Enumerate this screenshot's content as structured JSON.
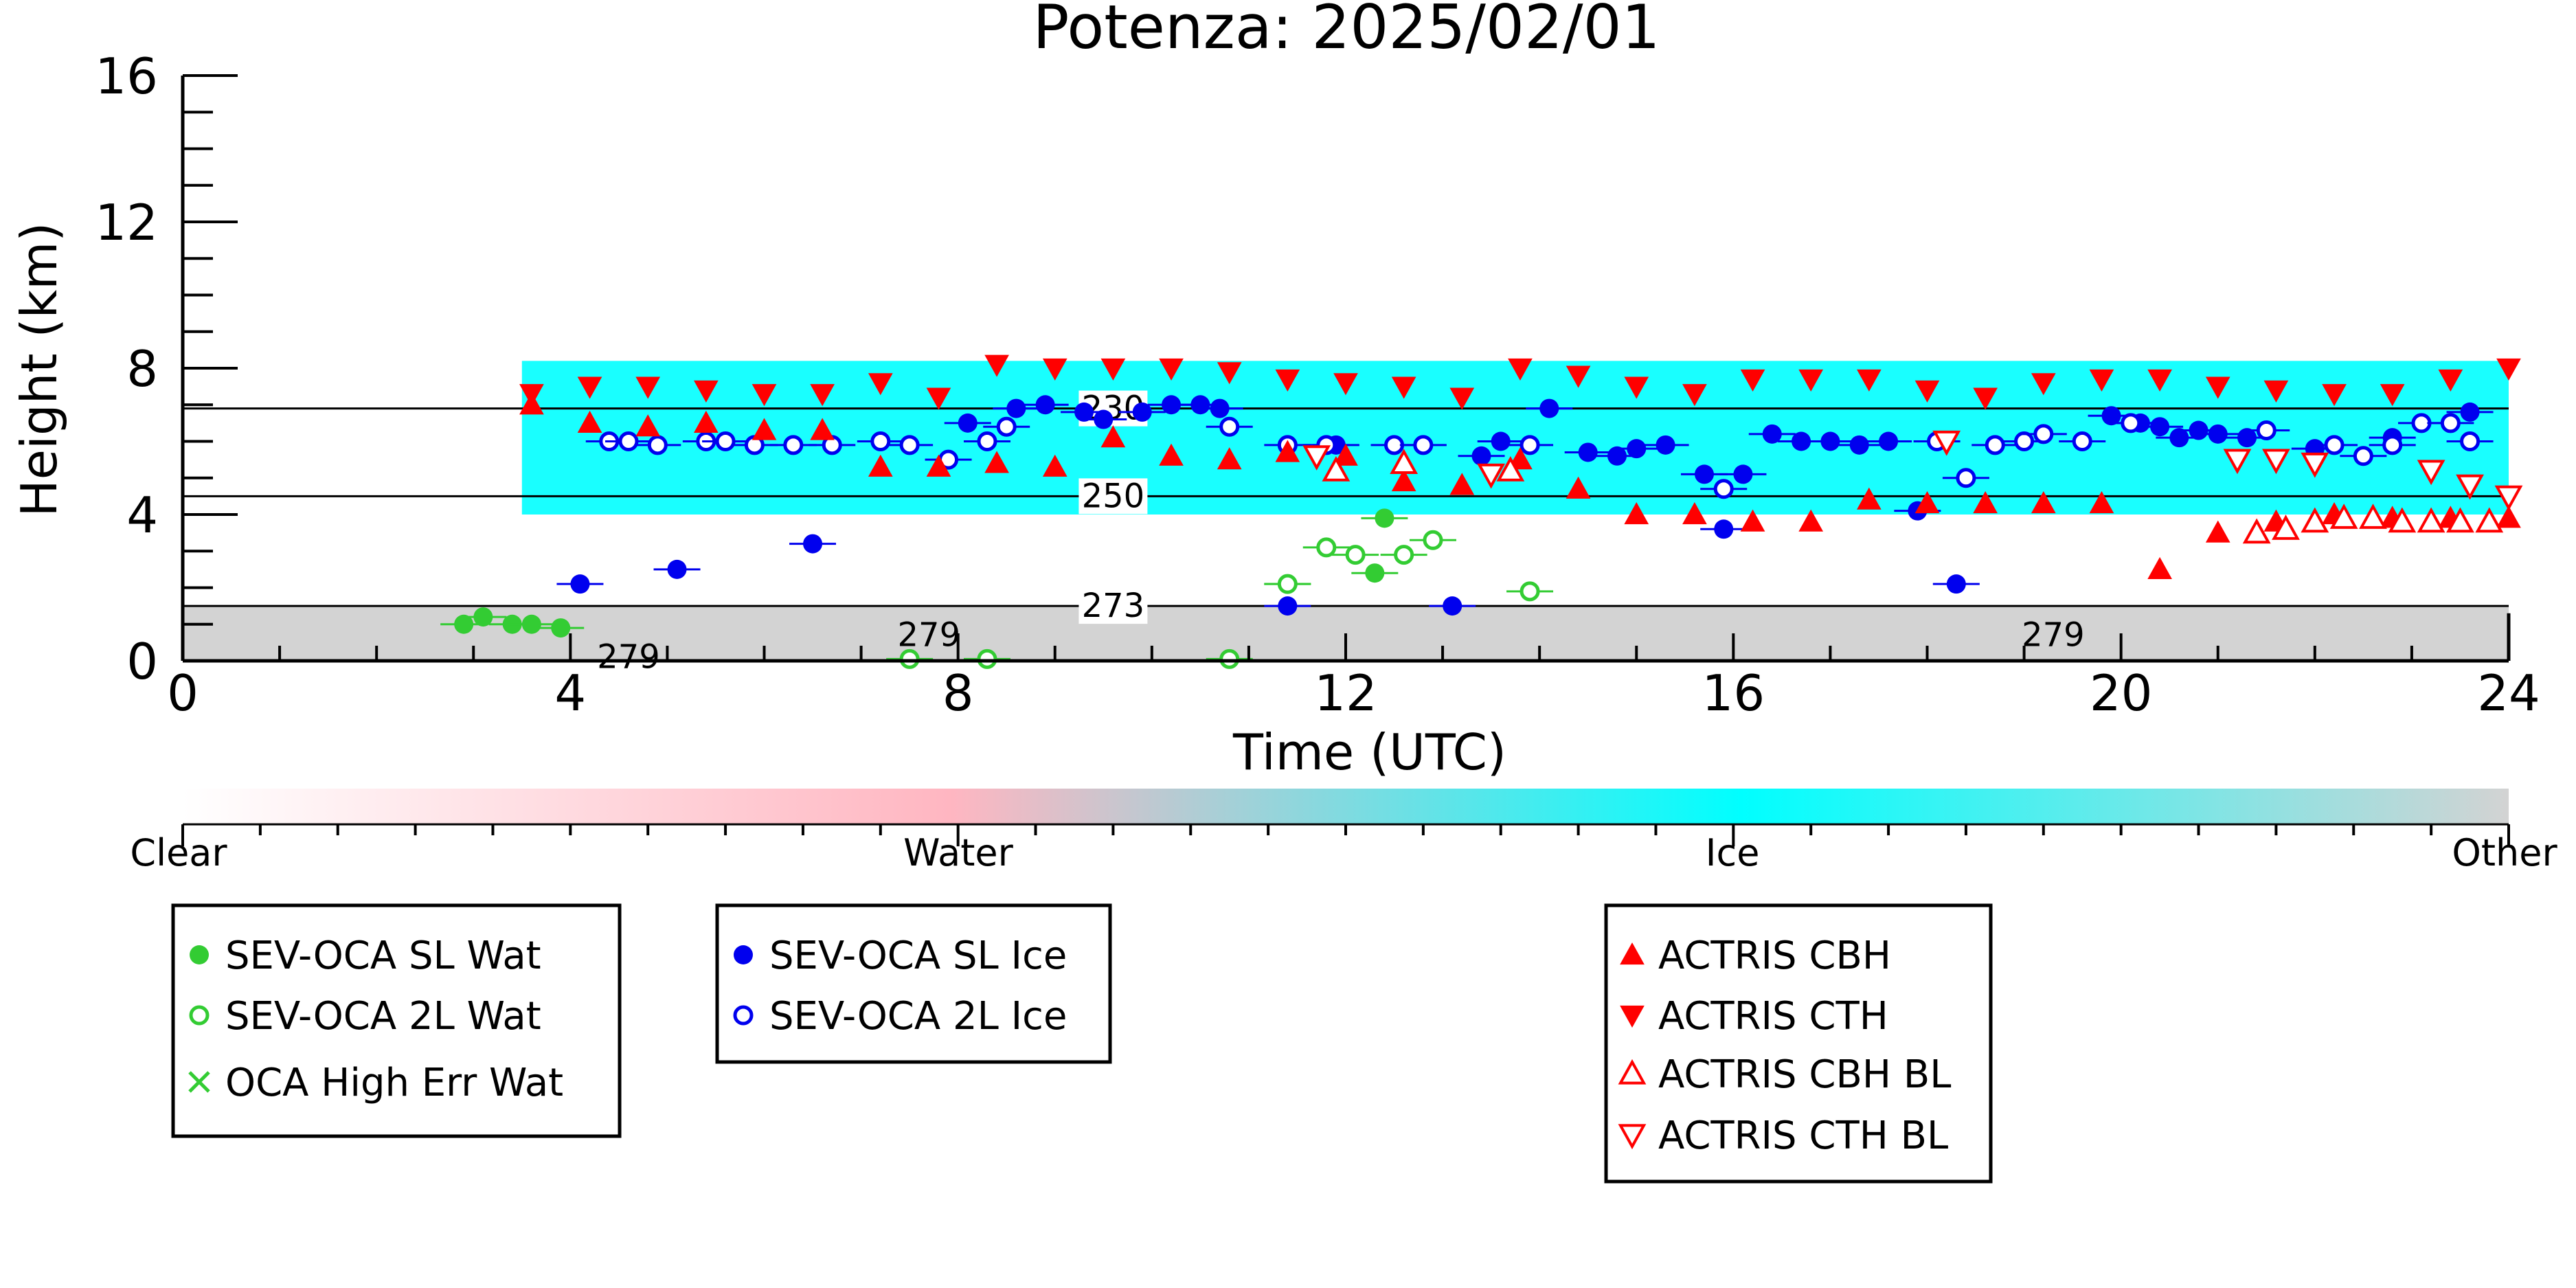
{
  "chart_data": {
    "type": "scatter",
    "title": "Potenza: 2025/02/01",
    "xlabel": "Time (UTC)",
    "ylabel": "Height (km)",
    "xlim": [
      0,
      24
    ],
    "ylim": [
      0,
      16
    ],
    "xticks": [
      0,
      4,
      8,
      12,
      16,
      20,
      24
    ],
    "yticks": [
      0,
      4,
      8,
      12,
      16
    ],
    "grid": false,
    "colorbar": {
      "labels": [
        "Clear",
        "Water",
        "Ice",
        "Other"
      ],
      "colors": {
        "clear": "#ffffff",
        "water": "#ffb6c1",
        "ice": "#00ffff",
        "other": "#d3d3d3"
      }
    },
    "cloud_mask": {
      "ice_layer": {
        "start_h": 3.5,
        "end_h": 24,
        "bottom_km": 4.0,
        "top_km": 8.2,
        "color": "#00ffff"
      },
      "other_layer": {
        "start_h": 0,
        "end_h": 24,
        "bottom_km": 0,
        "top_km": 1.5,
        "color": "#d3d3d3"
      }
    },
    "contours": [
      {
        "label": "230",
        "y_km": 6.9,
        "label_x": 9.6
      },
      {
        "label": "250",
        "y_km": 4.5,
        "label_x": 9.6
      },
      {
        "label": "273",
        "y_km": 1.5,
        "label_x": 9.6
      },
      {
        "label": "279",
        "y_km": 0.7,
        "label_x": 7.7
      },
      {
        "label": "279",
        "y_km": 0.7,
        "label_x": 19.3
      },
      {
        "label": "279",
        "y_km": 0.1,
        "label_x": 4.6
      }
    ],
    "series": [
      {
        "name": "SEV-OCA SL Wat",
        "marker": "circle-filled",
        "color": "#33cc33",
        "x": [
          2.9,
          3.1,
          3.4,
          3.6,
          3.9,
          11.4,
          12.3,
          12.4
        ],
        "y": [
          1.0,
          1.2,
          1.0,
          1.0,
          0.9,
          2.1,
          2.4,
          3.9
        ]
      },
      {
        "name": "SEV-OCA 2L Wat",
        "marker": "circle-open",
        "color": "#33cc33",
        "x": [
          11.4,
          11.8,
          12.1,
          12.6,
          12.9,
          13.9,
          7.5,
          8.3,
          10.8
        ],
        "y": [
          2.1,
          3.1,
          2.9,
          2.9,
          3.3,
          1.9,
          0.05,
          0.05,
          0.05
        ]
      },
      {
        "name": "OCA High Err Wat",
        "marker": "x",
        "color": "#33cc33",
        "x": [],
        "y": []
      },
      {
        "name": "SEV-OCA SL Ice",
        "marker": "circle-filled",
        "color": "#0000ee",
        "x": [
          4.1,
          5.1,
          6.5,
          8.1,
          8.6,
          8.9,
          9.3,
          9.5,
          9.9,
          10.2,
          10.5,
          10.7,
          11.4,
          11.9,
          13.1,
          13.4,
          13.6,
          14.1,
          14.5,
          14.8,
          15.0,
          15.3,
          15.7,
          15.9,
          16.1,
          16.4,
          16.7,
          17.0,
          17.3,
          17.6,
          17.9,
          18.3,
          19.9,
          20.2,
          20.4,
          20.6,
          20.8,
          21.0,
          21.3,
          22.0,
          22.8,
          23.6
        ],
        "y": [
          2.1,
          2.5,
          3.2,
          6.5,
          6.9,
          7.0,
          6.8,
          6.6,
          6.8,
          7.0,
          7.0,
          6.9,
          1.5,
          5.9,
          1.5,
          5.6,
          6.0,
          6.9,
          5.7,
          5.6,
          5.8,
          5.9,
          5.1,
          3.6,
          5.1,
          6.2,
          6.0,
          6.0,
          5.9,
          6.0,
          4.1,
          2.1,
          6.7,
          6.5,
          6.4,
          6.1,
          6.3,
          6.2,
          6.1,
          5.8,
          6.1,
          6.8
        ]
      },
      {
        "name": "SEV-OCA 2L Ice",
        "marker": "circle-open",
        "color": "#0000ee",
        "x": [
          4.4,
          4.6,
          4.9,
          5.4,
          5.6,
          5.9,
          6.3,
          6.7,
          7.2,
          7.5,
          7.9,
          8.3,
          8.5,
          10.8,
          11.4,
          11.8,
          12.5,
          12.8,
          13.9,
          15.9,
          18.1,
          18.4,
          18.7,
          19.0,
          19.2,
          19.6,
          20.1,
          21.5,
          22.2,
          22.5,
          22.8,
          23.1,
          23.4,
          23.6
        ],
        "y": [
          6.0,
          6.0,
          5.9,
          6.0,
          6.0,
          5.9,
          5.9,
          5.9,
          6.0,
          5.9,
          5.5,
          6.0,
          6.4,
          6.4,
          5.9,
          5.9,
          5.9,
          5.9,
          5.9,
          4.7,
          6.0,
          5.0,
          5.9,
          6.0,
          6.2,
          6.0,
          6.5,
          6.3,
          5.9,
          5.6,
          5.9,
          6.5,
          6.5,
          6.0
        ]
      },
      {
        "name": "ACTRIS CBH",
        "marker": "triangle-up-filled",
        "color": "#ff0000",
        "x": [
          3.6,
          4.2,
          4.8,
          5.4,
          6.0,
          6.6,
          7.2,
          7.8,
          8.4,
          9.0,
          9.6,
          10.2,
          10.8,
          11.4,
          12.0,
          12.6,
          13.2,
          13.8,
          14.4,
          15.0,
          15.6,
          16.2,
          16.8,
          17.4,
          18.0,
          18.6,
          19.2,
          19.8,
          20.4,
          21.0,
          21.6,
          22.2,
          22.8,
          23.4,
          24.0
        ],
        "y": [
          7.0,
          6.5,
          6.4,
          6.5,
          6.3,
          6.3,
          5.3,
          5.3,
          5.4,
          5.3,
          6.1,
          5.6,
          5.5,
          5.7,
          5.6,
          4.9,
          4.8,
          5.5,
          4.7,
          4.0,
          4.0,
          3.8,
          3.8,
          4.4,
          4.3,
          4.3,
          4.3,
          4.3,
          2.5,
          3.5,
          3.8,
          4.0,
          3.9,
          3.9,
          3.9
        ]
      },
      {
        "name": "ACTRIS CTH",
        "marker": "triangle-down-filled",
        "color": "#ff0000",
        "x": [
          3.6,
          4.2,
          4.8,
          5.4,
          6.0,
          6.6,
          7.2,
          7.8,
          8.4,
          9.0,
          9.6,
          10.2,
          10.8,
          11.4,
          12.0,
          12.6,
          13.2,
          13.8,
          14.4,
          15.0,
          15.6,
          16.2,
          16.8,
          17.4,
          18.0,
          18.6,
          19.2,
          19.8,
          20.4,
          21.0,
          21.6,
          22.2,
          22.8,
          23.4,
          24.0
        ],
        "y": [
          7.3,
          7.5,
          7.5,
          7.4,
          7.3,
          7.3,
          7.6,
          7.2,
          8.1,
          8.0,
          8.0,
          8.0,
          7.9,
          7.7,
          7.6,
          7.5,
          7.2,
          8.0,
          7.8,
          7.5,
          7.3,
          7.7,
          7.7,
          7.7,
          7.4,
          7.2,
          7.6,
          7.7,
          7.7,
          7.5,
          7.4,
          7.3,
          7.3,
          7.7,
          8.0
        ]
      },
      {
        "name": "ACTRIS CBH BL",
        "marker": "triangle-up-open",
        "color": "#ff0000",
        "x": [
          11.9,
          12.6,
          13.7,
          21.4,
          21.7,
          22.0,
          22.3,
          22.6,
          22.9,
          23.2,
          23.5,
          23.8
        ],
        "y": [
          5.2,
          5.4,
          5.2,
          3.5,
          3.6,
          3.8,
          3.9,
          3.9,
          3.8,
          3.8,
          3.8,
          3.8
        ]
      },
      {
        "name": "ACTRIS CTH BL",
        "marker": "triangle-down-open",
        "color": "#ff0000",
        "x": [
          11.7,
          13.5,
          18.2,
          21.2,
          21.6,
          22.0,
          23.2,
          23.6,
          24.0
        ],
        "y": [
          5.6,
          5.1,
          6.0,
          5.5,
          5.5,
          5.4,
          5.2,
          4.8,
          4.5
        ]
      }
    ]
  }
}
